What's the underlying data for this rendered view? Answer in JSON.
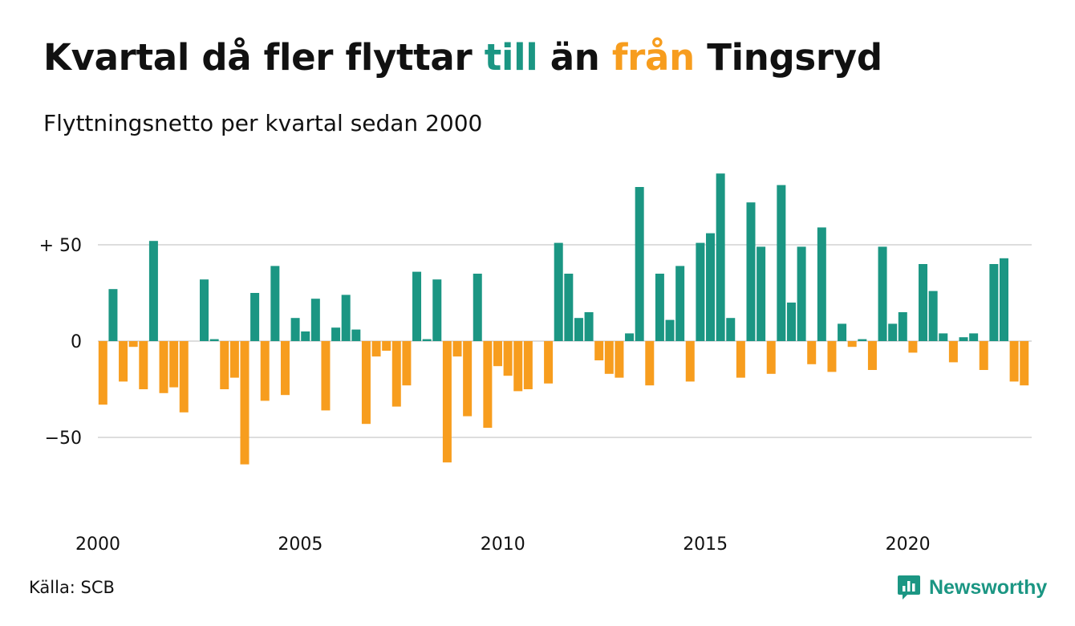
{
  "title": {
    "part1": "Kvartal då fler flyttar ",
    "part2": "till",
    "part3": " än ",
    "part4": "från",
    "part5": " Tingsryd"
  },
  "subtitle": "Flyttningsnetto per kvartal sedan 2000",
  "source": "Källa: SCB",
  "logo": {
    "text": "Newsworthy",
    "icon": "bar-chart-chat-bubble-icon"
  },
  "colors": {
    "positive": "#1b9683",
    "negative": "#f79d1e",
    "grid": "#dddddd",
    "text": "#111111"
  },
  "chart_data": {
    "type": "bar",
    "title": "Kvartal då fler flyttar till än från Tingsryd",
    "subtitle": "Flyttningsnetto per kvartal sedan 2000",
    "xlabel": "",
    "ylabel": "",
    "start_year": 2000,
    "quarters_per_year": 4,
    "ylim": [
      -92,
      92
    ],
    "grid": true,
    "y_ticks": [
      {
        "value": 50,
        "label": "+ 50"
      },
      {
        "value": 0,
        "label": "0"
      },
      {
        "value": -50,
        "label": "−50"
      }
    ],
    "x_ticks": [
      "2000",
      "2005",
      "2010",
      "2015",
      "2020"
    ],
    "values": [
      -33,
      27,
      -21,
      -3,
      -25,
      52,
      -27,
      -24,
      -37,
      0,
      32,
      1,
      -25,
      -19,
      -64,
      25,
      -31,
      39,
      -28,
      12,
      5,
      22,
      -36,
      7,
      24,
      6,
      -43,
      -8,
      -5,
      -34,
      -23,
      36,
      1,
      32,
      -63,
      -8,
      -39,
      35,
      -45,
      -13,
      -18,
      -26,
      -25,
      0,
      -22,
      51,
      35,
      12,
      15,
      -10,
      -17,
      -19,
      4,
      80,
      -23,
      35,
      11,
      39,
      -21,
      51,
      56,
      87,
      12,
      -19,
      72,
      49,
      -17,
      81,
      20,
      49,
      -12,
      59,
      -16,
      9,
      -3,
      1,
      -15,
      49,
      9,
      15,
      -6,
      40,
      26,
      4,
      -11,
      2,
      4,
      -15,
      40,
      43,
      -21,
      -23
    ]
  }
}
